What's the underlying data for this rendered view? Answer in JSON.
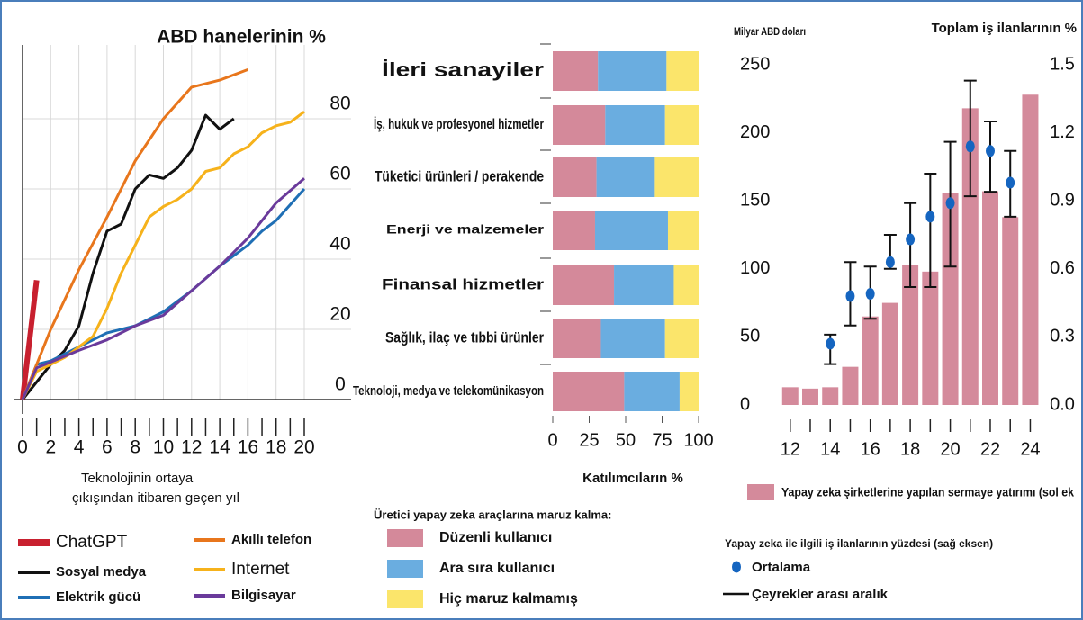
{
  "chart_data": [
    {
      "type": "line",
      "title": "ABD hanelerinin %",
      "x_label": [
        "Teknolojinin ortaya",
        "çıkışından itibaren geçen yıl"
      ],
      "xlim": [
        0,
        20
      ],
      "xticks": [
        0,
        2,
        4,
        6,
        8,
        10,
        12,
        14,
        16,
        18,
        20
      ],
      "xminorticks": [
        1,
        3,
        5,
        7,
        9,
        11,
        13,
        15,
        17,
        19
      ],
      "ylim": [
        0,
        100
      ],
      "yticks": [
        0,
        20,
        40,
        60,
        80
      ],
      "grid": true,
      "series": [
        {
          "name": "ChatGPT",
          "color": "#c8202f",
          "x": [
            0,
            1
          ],
          "values": [
            0,
            34
          ]
        },
        {
          "name": "Sosyal medya",
          "color": "#111111",
          "x": [
            0,
            2,
            3,
            4,
            5,
            6,
            7,
            8,
            9,
            10,
            11,
            12,
            13,
            14,
            15
          ],
          "values": [
            0,
            10,
            14,
            21,
            36,
            48,
            50,
            60,
            64,
            63,
            66,
            71,
            81,
            77,
            80
          ]
        },
        {
          "name": "Elektrik gücü",
          "color": "#1f6fb5",
          "x": [
            0,
            1,
            2,
            4,
            6,
            8,
            10,
            12,
            14,
            16,
            17,
            18,
            20
          ],
          "values": [
            0,
            10,
            11,
            15,
            19,
            21,
            25,
            31,
            38,
            44,
            48,
            51,
            60
          ]
        },
        {
          "name": "Akıllı telefon",
          "color": "#e8761c",
          "x": [
            0,
            2,
            4,
            6,
            8,
            10,
            12,
            14,
            16
          ],
          "values": [
            0,
            20,
            37,
            52,
            68,
            80,
            89,
            91,
            94
          ]
        },
        {
          "name": "Internet",
          "color": "#f6b21b",
          "x": [
            0,
            1,
            2,
            3,
            4,
            5,
            6,
            7,
            8,
            9,
            10,
            11,
            12,
            13,
            14,
            15,
            16,
            17,
            18,
            19,
            20
          ],
          "values": [
            0,
            8,
            10,
            12,
            15,
            18,
            26,
            36,
            44,
            52,
            55,
            57,
            60,
            65,
            66,
            70,
            72,
            76,
            78,
            79,
            82
          ]
        },
        {
          "name": "Bilgisayar",
          "color": "#6a3a9b",
          "x": [
            0,
            1,
            4,
            6,
            8,
            10,
            12,
            14,
            16,
            18,
            20
          ],
          "values": [
            0,
            9,
            14,
            17,
            21,
            24,
            31,
            38,
            46,
            56,
            63
          ]
        }
      ]
    },
    {
      "type": "barh",
      "stacked": true,
      "x_label": "Katılımcıların %",
      "categories": [
        "İleri sanayiler",
        "İş, hukuk ve profesyonel hizmetler",
        "Tüketici ürünleri / perakende",
        "Enerji ve malzemeler",
        "Finansal hizmetler",
        "Sağlık, ilaç ve tıbbi ürünler",
        "Teknoloji, medya ve telekomünikasyon"
      ],
      "xlim": [
        0,
        100
      ],
      "xticks": [
        0,
        25,
        50,
        75,
        100
      ],
      "legend_title": "Üretici yapay zeka araçlarına maruz kalma:",
      "series": [
        {
          "name": "Düzenli kullanıcı",
          "color": "#d4899a",
          "values": [
            31,
            36,
            30,
            29,
            42,
            33,
            49
          ]
        },
        {
          "name": "Ara sıra kullanıcı",
          "color": "#6aade0",
          "values": [
            47,
            41,
            40,
            50,
            41,
            44,
            38
          ]
        },
        {
          "name": "Hiç maruz kalmamış",
          "color": "#fbe56b",
          "values": [
            22,
            23,
            30,
            21,
            17,
            23,
            13
          ]
        }
      ]
    },
    {
      "type": "bar",
      "y_label": "Milyar ABD doları",
      "y2_label": "Toplam iş ilanlarının %",
      "x": [
        12,
        13,
        14,
        15,
        16,
        17,
        18,
        19,
        20,
        21,
        22,
        23,
        24
      ],
      "xlim": [
        11.2,
        24.7
      ],
      "xticks": [
        12,
        14,
        16,
        18,
        20,
        22,
        24
      ],
      "ylim": [
        0,
        250
      ],
      "yticks": [
        0,
        50,
        100,
        150,
        200,
        250
      ],
      "y2lim": [
        0,
        1.5
      ],
      "y2ticks": [
        {
          "value": 0,
          "label": "0.0"
        },
        0.3,
        0.6,
        0.9,
        1.2,
        1.5
      ],
      "legend_title": "Yapay zeka ile ilgili iş ilanlarının yüzdesi (sağ eksen)",
      "series": [
        {
          "name": "Yapay zeka şirketlerine yapılan sermaye yatırımı (sol ek",
          "color": "#d48a9b",
          "values": [
            13,
            12,
            13,
            28,
            65,
            75,
            103,
            98,
            156,
            218,
            157,
            138,
            228
          ]
        },
        {
          "name": "Ortalama",
          "color": "#1565c0",
          "axis": "y2",
          "values": [
            null,
            null,
            0.27,
            0.48,
            0.49,
            0.63,
            0.73,
            0.83,
            0.89,
            1.14,
            1.12,
            0.98,
            null
          ]
        },
        {
          "name": "Çeyrekler arası aralık",
          "color": "#111111",
          "axis": "y2",
          "low": [
            null,
            null,
            0.18,
            0.35,
            0.38,
            0.6,
            0.52,
            0.52,
            0.61,
            0.92,
            0.94,
            0.83,
            null
          ],
          "high": [
            null,
            null,
            0.31,
            0.63,
            0.61,
            0.75,
            0.89,
            1.02,
            1.16,
            1.43,
            1.25,
            1.12,
            null
          ]
        }
      ]
    }
  ]
}
